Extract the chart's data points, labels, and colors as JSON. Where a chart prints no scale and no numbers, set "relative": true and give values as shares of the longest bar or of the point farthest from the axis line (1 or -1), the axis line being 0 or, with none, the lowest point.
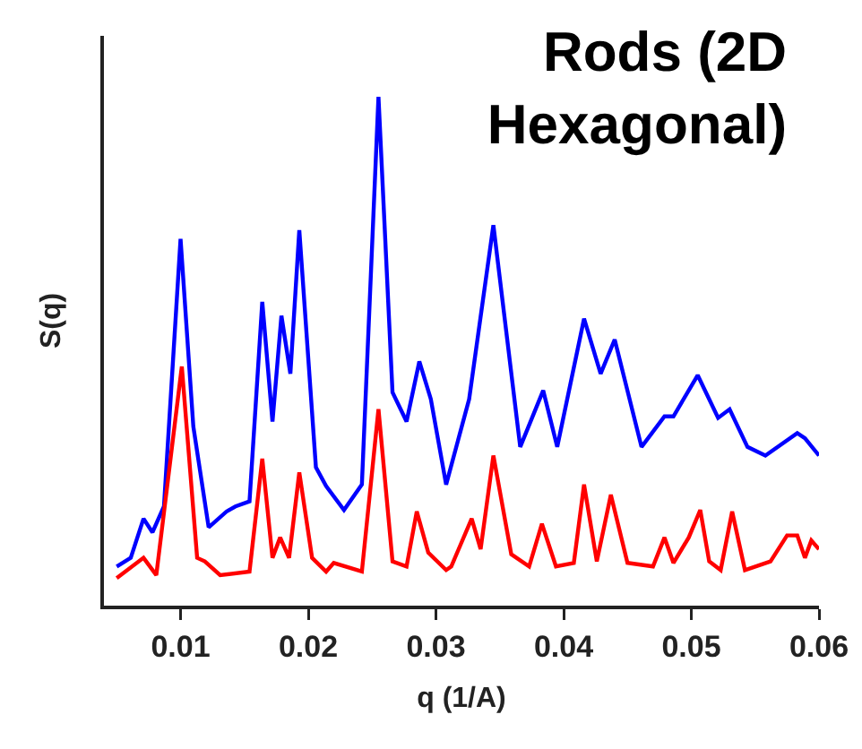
{
  "chart_data": {
    "type": "line",
    "title": "Rods (2D\nHexagonal)",
    "xlabel": "q (1/A)",
    "ylabel": "S(q)",
    "relative": true,
    "xlim": [
      0.004,
      0.06
    ],
    "xticks": [
      0.01,
      0.02,
      0.03,
      0.04,
      0.05,
      0.06
    ],
    "grid": false,
    "marker": "none",
    "line_style": "solid",
    "series": [
      {
        "color": "#0000ff",
        "x": [
          0.005,
          0.0061,
          0.0071,
          0.0078,
          0.0087,
          0.01,
          0.011,
          0.0122,
          0.0136,
          0.0143,
          0.0154,
          0.0164,
          0.0172,
          0.0179,
          0.0186,
          0.0193,
          0.0206,
          0.0214,
          0.0228,
          0.0242,
          0.0255,
          0.0266,
          0.0277,
          0.0287,
          0.0296,
          0.0308,
          0.0326,
          0.0345,
          0.0366,
          0.0384,
          0.0395,
          0.0416,
          0.0429,
          0.044,
          0.0461,
          0.0479,
          0.0486,
          0.0505,
          0.0521,
          0.053,
          0.0544,
          0.0558,
          0.0583,
          0.0589,
          0.06
        ],
        "values": [
          0.077,
          0.094,
          0.171,
          0.144,
          0.195,
          0.721,
          0.352,
          0.154,
          0.185,
          0.195,
          0.205,
          0.597,
          0.362,
          0.57,
          0.456,
          0.738,
          0.272,
          0.235,
          0.188,
          0.238,
          1,
          0.419,
          0.362,
          0.48,
          0.406,
          0.238,
          0.406,
          0.748,
          0.312,
          0.423,
          0.312,
          0.564,
          0.456,
          0.523,
          0.312,
          0.372,
          0.372,
          0.453,
          0.369,
          0.386,
          0.312,
          0.295,
          0.339,
          0.329,
          0.295
        ]
      },
      {
        "color": "#ff0000",
        "x": [
          0.005,
          0.0071,
          0.0081,
          0.0101,
          0.0113,
          0.0119,
          0.0131,
          0.0154,
          0.0164,
          0.0172,
          0.0178,
          0.0185,
          0.0193,
          0.0203,
          0.0214,
          0.022,
          0.0242,
          0.0255,
          0.0266,
          0.0277,
          0.0285,
          0.0294,
          0.0308,
          0.0312,
          0.0328,
          0.0335,
          0.0345,
          0.0359,
          0.0373,
          0.0383,
          0.0394,
          0.0408,
          0.0416,
          0.0426,
          0.0437,
          0.045,
          0.047,
          0.0479,
          0.0486,
          0.0498,
          0.0507,
          0.0514,
          0.0523,
          0.0532,
          0.0542,
          0.0562,
          0.0575,
          0.0583,
          0.0589,
          0.0594,
          0.06
        ],
        "values": [
          0.054,
          0.094,
          0.06,
          0.47,
          0.094,
          0.087,
          0.06,
          0.067,
          0.289,
          0.094,
          0.134,
          0.094,
          0.262,
          0.094,
          0.067,
          0.084,
          0.067,
          0.386,
          0.087,
          0.077,
          0.185,
          0.104,
          0.07,
          0.077,
          0.171,
          0.111,
          0.295,
          0.101,
          0.077,
          0.161,
          0.077,
          0.084,
          0.238,
          0.087,
          0.218,
          0.084,
          0.077,
          0.134,
          0.084,
          0.134,
          0.188,
          0.087,
          0.07,
          0.185,
          0.07,
          0.087,
          0.138,
          0.138,
          0.094,
          0.128,
          0.111
        ]
      }
    ]
  }
}
